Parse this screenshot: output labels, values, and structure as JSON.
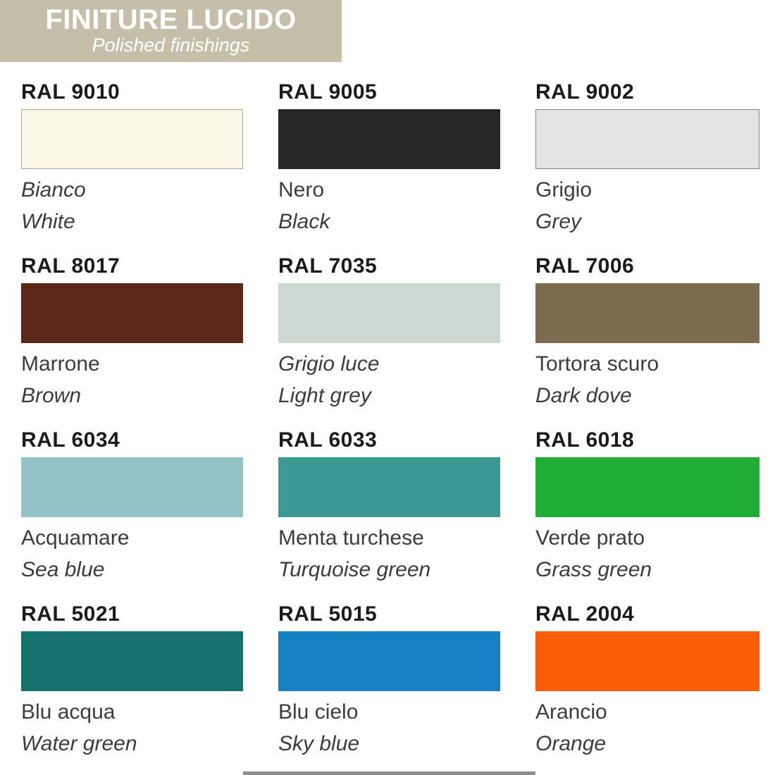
{
  "header": {
    "title": "FINITURE LUCIDO",
    "subtitle": "Polished finishings",
    "bg_color": "#c5bfa9",
    "text_color": "#ffffff"
  },
  "swatches": [
    {
      "code": "RAL 9010",
      "name_it": "Bianco",
      "name_en": "White",
      "color": "#faf7e9",
      "border": "#a9a8a0",
      "it_italic": true
    },
    {
      "code": "RAL 9005",
      "name_it": "Nero",
      "name_en": "Black",
      "color": "#262626",
      "border": "",
      "it_italic": false
    },
    {
      "code": "RAL 9002",
      "name_it": "Grigio",
      "name_en": "Grey",
      "color": "#e2e3e2",
      "border": "#858585",
      "it_italic": false
    },
    {
      "code": "RAL 8017",
      "name_it": "Marrone",
      "name_en": "Brown",
      "color": "#5a2819",
      "border": "",
      "it_italic": false
    },
    {
      "code": "RAL 7035",
      "name_it": "Grigio luce",
      "name_en": "Light grey",
      "color": "#ccd8d2",
      "border": "",
      "it_italic": true
    },
    {
      "code": "RAL 7006",
      "name_it": "Tortora scuro",
      "name_en": "Dark dove",
      "color": "#7b6c4f",
      "border": "",
      "it_italic": false
    },
    {
      "code": "RAL 6034",
      "name_it": "Acquamare",
      "name_en": "Sea blue",
      "color": "#92c3c6",
      "border": "",
      "it_italic": false
    },
    {
      "code": "RAL 6033",
      "name_it": "Menta turchese",
      "name_en": "Turquoise green",
      "color": "#3a9a93",
      "border": "",
      "it_italic": false
    },
    {
      "code": "RAL 6018",
      "name_it": "Verde prato",
      "name_en": "Grass green",
      "color": "#1fad37",
      "border": "",
      "it_italic": false
    },
    {
      "code": "RAL 5021",
      "name_it": "Blu acqua",
      "name_en": "Water green",
      "color": "#16706c",
      "border": "",
      "it_italic": false
    },
    {
      "code": "RAL 5015",
      "name_it": "Blu cielo",
      "name_en": "Sky blue",
      "color": "#1580c3",
      "border": "",
      "it_italic": false
    },
    {
      "code": "RAL 2004",
      "name_it": "Arancio",
      "name_en": "Orange",
      "color": "#f95d07",
      "border": "",
      "it_italic": false
    }
  ],
  "footer": {
    "strip_color": "#8f8f8f"
  }
}
